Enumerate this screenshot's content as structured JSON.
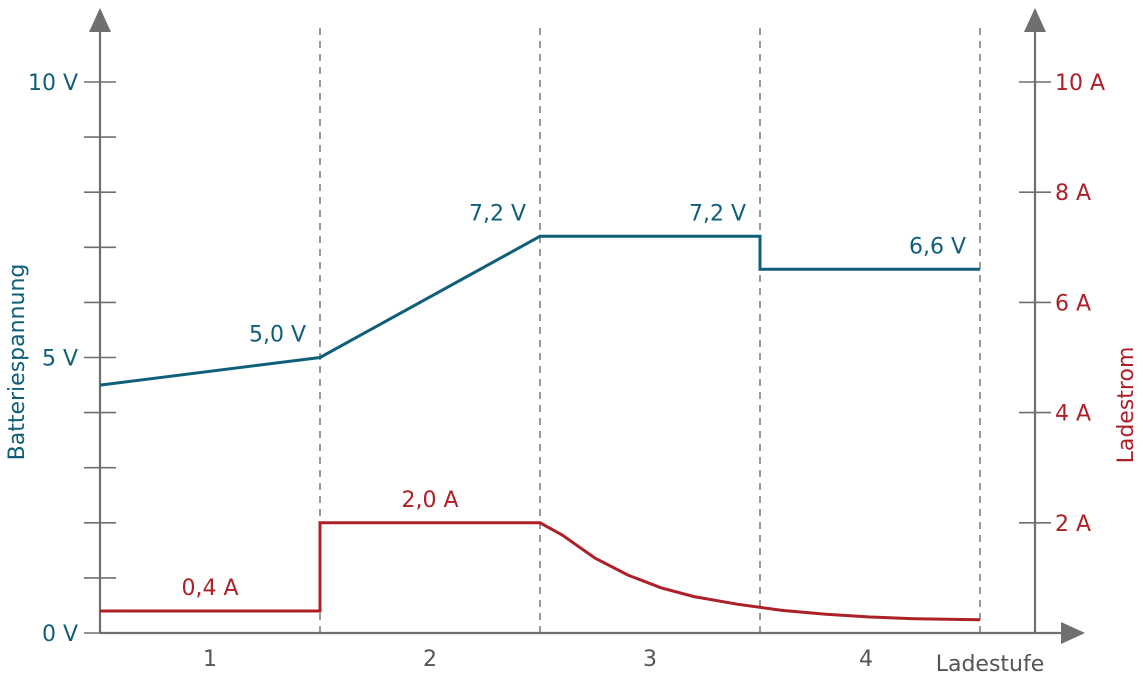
{
  "chart_data": {
    "type": "line",
    "x_axis": {
      "label": "Ladestufe",
      "categories": [
        "1",
        "2",
        "3",
        "4"
      ]
    },
    "y_left": {
      "label": "Batteriespannung",
      "unit": "V",
      "ylim": [
        0,
        11
      ],
      "tick_labels": [
        {
          "value": 0,
          "text": "0 V"
        },
        {
          "value": 5,
          "text": "5 V"
        },
        {
          "value": 10,
          "text": "10 V"
        }
      ],
      "minor_ticks": [
        1,
        2,
        3,
        4,
        6,
        7,
        8,
        9
      ]
    },
    "y_right": {
      "label": "Ladestrom",
      "unit": "A",
      "ylim": [
        0,
        11
      ],
      "tick_labels": [
        {
          "value": 2,
          "text": "2 A"
        },
        {
          "value": 4,
          "text": "4 A"
        },
        {
          "value": 6,
          "text": "6 A"
        },
        {
          "value": 8,
          "text": "8 A"
        },
        {
          "value": 10,
          "text": "10 A"
        }
      ]
    },
    "stage_boundaries": [
      1,
      2,
      3,
      4
    ],
    "x_range": [
      0,
      4
    ],
    "series": [
      {
        "axis": "left",
        "color": "#0f5f78",
        "points": [
          [
            0,
            4.5
          ],
          [
            1,
            5.0
          ],
          [
            2,
            7.2
          ],
          [
            3,
            7.2
          ],
          [
            3,
            6.6
          ],
          [
            4,
            6.6
          ]
        ],
        "annotations": [
          {
            "x": 1,
            "y": 5.0,
            "text": "5,0 V"
          },
          {
            "x": 2,
            "y": 7.2,
            "text": "7,2 V"
          },
          {
            "x": 3,
            "y": 7.2,
            "text": "7,2 V"
          },
          {
            "x": 4,
            "y": 6.6,
            "text": "6,6 V"
          }
        ]
      },
      {
        "axis": "right",
        "color": "#ac2128",
        "points": [
          [
            0,
            0.4
          ],
          [
            1,
            0.4
          ],
          [
            1,
            2.0
          ],
          [
            2,
            2.0
          ],
          [
            2.1,
            1.78
          ],
          [
            2.25,
            1.36
          ],
          [
            2.4,
            1.05
          ],
          [
            2.55,
            0.82
          ],
          [
            2.7,
            0.66
          ],
          [
            2.9,
            0.52
          ],
          [
            3.1,
            0.41
          ],
          [
            3.3,
            0.34
          ],
          [
            3.5,
            0.29
          ],
          [
            3.7,
            0.26
          ],
          [
            4,
            0.24
          ]
        ],
        "annotations": [
          {
            "x": 0.5,
            "y": 0.4,
            "text": "0,4 A"
          },
          {
            "x": 1.5,
            "y": 2.0,
            "text": "2,0 A"
          }
        ]
      }
    ]
  }
}
